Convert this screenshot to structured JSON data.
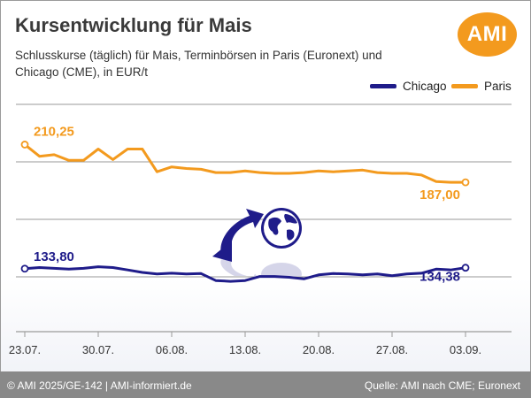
{
  "header": {
    "title": "Kursentwicklung für Mais",
    "subtitle": "Schlusskurse (täglich) für Mais, Terminbörsen in Paris (Euronext) und Chicago (CME), in EUR/t",
    "logo_text": "AMI"
  },
  "footer": {
    "left": "© AMI 2025/GE-142 | AMI-informiert.de",
    "right": "Quelle: AMI nach CME; Euronext"
  },
  "colors": {
    "paris": "#f39a1e",
    "chicago": "#1f1c8a",
    "grid": "#9a9a9a",
    "logo": "#f39a1e",
    "footer_bg": "#898989"
  },
  "icons": [
    "ami-logo-icon",
    "arrow-icon",
    "globe-icon"
  ],
  "chart_data": {
    "type": "line",
    "title": "Kursentwicklung für Mais",
    "x_tick_labels": [
      "23.07.",
      "30.07.",
      "06.08.",
      "13.08.",
      "20.08.",
      "27.08.",
      "03.09."
    ],
    "x": [
      "23.07.",
      "24.07.",
      "25.07.",
      "28.07.",
      "29.07.",
      "30.07.",
      "31.07.",
      "01.08.",
      "04.08.",
      "05.08.",
      "06.08.",
      "07.08.",
      "08.08.",
      "11.08.",
      "12.08.",
      "13.08.",
      "14.08.",
      "15.08.",
      "18.08.",
      "19.08.",
      "20.08.",
      "21.08.",
      "22.08.",
      "25.08.",
      "26.08.",
      "27.08.",
      "28.08.",
      "29.08.",
      "01.09.",
      "02.09.",
      "03.09."
    ],
    "series": [
      {
        "name": "Paris",
        "color": "#f39a1e",
        "values": [
          210.25,
          203,
          204,
          200.5,
          200.5,
          207.5,
          201,
          207.5,
          207.5,
          193.5,
          196.5,
          195.5,
          195,
          193,
          193,
          194,
          193,
          192.5,
          192.5,
          193,
          194,
          193.5,
          194,
          194.5,
          193,
          192.5,
          192.5,
          191.5,
          187.5,
          187,
          187
        ],
        "labels": [
          {
            "index": 0,
            "text": "210,25"
          },
          {
            "index": 30,
            "text": "187,00"
          }
        ]
      },
      {
        "name": "Chicago",
        "color": "#1f1c8a",
        "values": [
          133.8,
          134.5,
          134,
          133.5,
          134,
          135,
          134.5,
          133,
          131.5,
          130.5,
          131,
          130.5,
          130.8,
          126.5,
          126,
          126.5,
          129,
          129,
          128.5,
          127.5,
          130,
          130.8,
          130.5,
          130,
          130.5,
          129.5,
          130.5,
          131,
          133.5,
          133,
          134.38
        ],
        "labels": [
          {
            "index": 0,
            "text": "133,80"
          },
          {
            "index": 30,
            "text": "134,38"
          }
        ]
      }
    ],
    "ylim": [
      95,
      235
    ],
    "grid": true,
    "legend": "top-right"
  }
}
